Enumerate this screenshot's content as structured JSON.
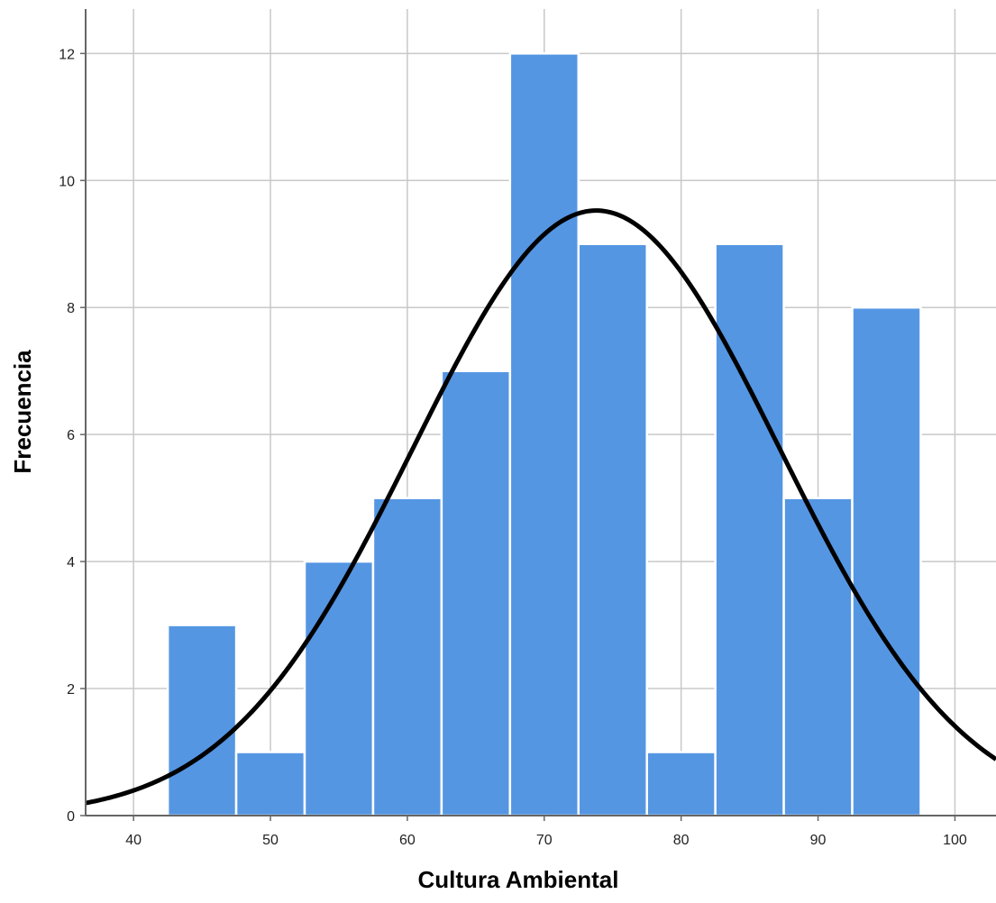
{
  "chart_data": {
    "type": "bar",
    "subtype": "histogram",
    "xlabel": "Cultura Ambiental",
    "ylabel": "Frecuencia",
    "xlim": [
      36.5,
      103
    ],
    "ylim": [
      0,
      12.7
    ],
    "x_ticks": [
      40,
      50,
      60,
      70,
      80,
      90,
      100
    ],
    "y_ticks": [
      0,
      2,
      4,
      6,
      8,
      10,
      12
    ],
    "bin_width": 5,
    "bins": [
      {
        "start": 42.5,
        "end": 47.5,
        "value": 3
      },
      {
        "start": 47.5,
        "end": 52.5,
        "value": 1
      },
      {
        "start": 52.5,
        "end": 57.5,
        "value": 4
      },
      {
        "start": 57.5,
        "end": 62.5,
        "value": 5
      },
      {
        "start": 62.5,
        "end": 67.5,
        "value": 7
      },
      {
        "start": 67.5,
        "end": 72.5,
        "value": 12
      },
      {
        "start": 72.5,
        "end": 77.5,
        "value": 9
      },
      {
        "start": 77.5,
        "end": 82.5,
        "value": 1
      },
      {
        "start": 82.5,
        "end": 87.5,
        "value": 9
      },
      {
        "start": 87.5,
        "end": 92.5,
        "value": 5
      },
      {
        "start": 92.5,
        "end": 97.5,
        "value": 8
      }
    ],
    "normal_curve": {
      "mean": 73.8,
      "sd": 13.4,
      "n": 64
    },
    "grid": true,
    "colors": {
      "bar": "#5596e3",
      "bar_edge": "#ffffff",
      "curve": "#000000",
      "grid": "#c8c8c8",
      "axis": "#666666"
    }
  }
}
